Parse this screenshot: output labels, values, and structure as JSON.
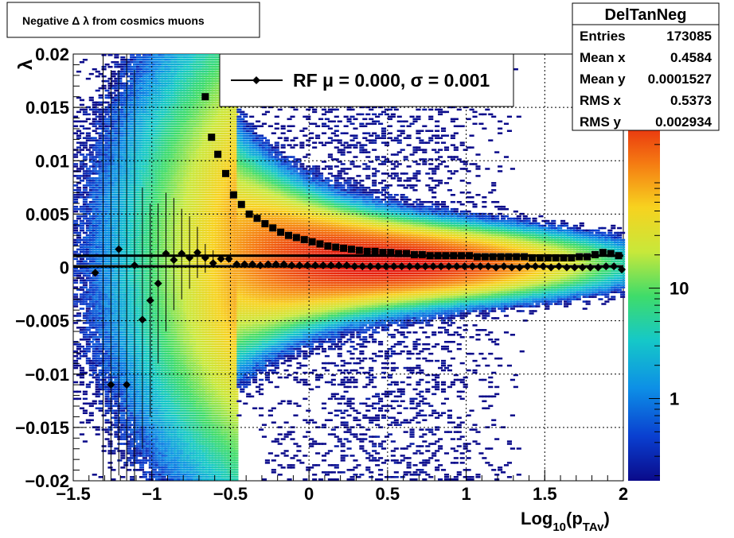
{
  "chart_data": {
    "type": "heatmap",
    "title": "Negative Δ λ from cosmics muons",
    "xlabel": {
      "main": "Log",
      "sub1": "10",
      "mid": "(p",
      "sub2": "TAv",
      "end": ")"
    },
    "ylabel": "λ",
    "xlim": [
      -1.5,
      2.0
    ],
    "ylim": [
      -0.02,
      0.02
    ],
    "grid": true,
    "x_ticks": [
      {
        "v": -1.5,
        "label": "−1.5"
      },
      {
        "v": -1.0,
        "label": "−1"
      },
      {
        "v": -0.5,
        "label": "−0.5"
      },
      {
        "v": 0.0,
        "label": "0"
      },
      {
        "v": 0.5,
        "label": "0.5"
      },
      {
        "v": 1.0,
        "label": "1"
      },
      {
        "v": 1.5,
        "label": "1.5"
      },
      {
        "v": 2.0,
        "label": "2"
      }
    ],
    "y_ticks": [
      {
        "v": 0.02,
        "label": "0.02"
      },
      {
        "v": 0.015,
        "label": "0.015"
      },
      {
        "v": 0.01,
        "label": "0.01"
      },
      {
        "v": 0.005,
        "label": "0.005"
      },
      {
        "v": 0.0,
        "label": "0"
      },
      {
        "v": -0.005,
        "label": "−0.005"
      },
      {
        "v": -0.01,
        "label": "−0.01"
      },
      {
        "v": -0.015,
        "label": "−0.015"
      },
      {
        "v": -0.02,
        "label": "−0.02"
      }
    ],
    "colorbar": {
      "scale": "log",
      "ticks": [
        {
          "v": 1,
          "label": "1"
        },
        {
          "v": 10,
          "label": "10"
        }
      ]
    },
    "legend": {
      "marker": "diamond",
      "text": "RF μ =  0.000, σ =   0.001",
      "placement": "top-center"
    },
    "stats": {
      "name": "DelTanNeg",
      "rows": [
        {
          "label": "Entries",
          "value": "173085"
        },
        {
          "label": "Mean x",
          "value": "0.4584"
        },
        {
          "label": "Mean y",
          "value": "0.0001527"
        },
        {
          "label": "RMS x",
          "value": "0.5373"
        },
        {
          "label": "RMS y",
          "value": "0.002934"
        }
      ]
    },
    "series": [
      {
        "marker": "square",
        "x": [
          -0.66,
          -0.62,
          -0.58,
          -0.53,
          -0.48,
          -0.43,
          -0.38,
          -0.33,
          -0.28,
          -0.23,
          -0.18,
          -0.13,
          -0.08,
          -0.03,
          0.02,
          0.07,
          0.12,
          0.17,
          0.22,
          0.27,
          0.32,
          0.37,
          0.42,
          0.47,
          0.52,
          0.57,
          0.62,
          0.67,
          0.72,
          0.77,
          0.82,
          0.87,
          0.92,
          0.97,
          1.02,
          1.07,
          1.12,
          1.17,
          1.22,
          1.27,
          1.32,
          1.37,
          1.42,
          1.47,
          1.52,
          1.57,
          1.62,
          1.67,
          1.72,
          1.77,
          1.82,
          1.87,
          1.92,
          1.97
        ],
        "y": [
          0.016,
          0.0122,
          0.0106,
          0.0088,
          0.0068,
          0.0059,
          0.005,
          0.0046,
          0.0041,
          0.0037,
          0.0033,
          0.003,
          0.0028,
          0.0026,
          0.0024,
          0.0022,
          0.002,
          0.0019,
          0.0018,
          0.0017,
          0.0016,
          0.0015,
          0.0015,
          0.0014,
          0.0014,
          0.0013,
          0.0013,
          0.0012,
          0.0012,
          0.0011,
          0.0011,
          0.0011,
          0.0011,
          0.0011,
          0.0011,
          0.001,
          0.001,
          0.001,
          0.001,
          0.001,
          0.001,
          0.001,
          0.0009,
          0.0009,
          0.0009,
          0.0009,
          0.0009,
          0.0009,
          0.001,
          0.001,
          0.0012,
          0.0014,
          0.0013,
          0.0011
        ]
      },
      {
        "marker": "diamond",
        "x": [
          -1.36,
          -1.26,
          -1.21,
          -1.16,
          -1.11,
          -1.06,
          -1.01,
          -0.96,
          -0.91,
          -0.86,
          -0.81,
          -0.76,
          -0.71,
          -0.66,
          -0.61,
          -0.56,
          -0.51,
          -0.46,
          -0.41,
          -0.36,
          -0.31,
          -0.26,
          -0.21,
          -0.16,
          -0.11,
          -0.06,
          -0.01,
          0.04,
          0.09,
          0.14,
          0.19,
          0.24,
          0.29,
          0.34,
          0.39,
          0.44,
          0.49,
          0.54,
          0.59,
          0.64,
          0.69,
          0.74,
          0.79,
          0.84,
          0.89,
          0.94,
          0.99,
          1.04,
          1.09,
          1.14,
          1.19,
          1.24,
          1.29,
          1.34,
          1.39,
          1.44,
          1.49,
          1.54,
          1.59,
          1.64,
          1.69,
          1.74,
          1.79,
          1.84,
          1.89,
          1.94,
          1.99
        ],
        "y": [
          -0.0005,
          -0.011,
          0.0017,
          -0.011,
          0.0002,
          -0.0049,
          -0.0031,
          -0.0015,
          0.0013,
          0.0007,
          0.0013,
          0.0009,
          0.0014,
          0.0009,
          0.0004,
          0.0008,
          0.0008,
          0.0003,
          0.0003,
          0.0003,
          0.0002,
          0.0003,
          0.0003,
          0.0003,
          0.0002,
          0.0002,
          0.0002,
          0.0002,
          0.0002,
          0.0002,
          0.0002,
          0.0002,
          0.0001,
          0.0001,
          0.0001,
          0.0001,
          0.0001,
          0.0001,
          0.0001,
          0.0001,
          0.0001,
          0.0001,
          0.0001,
          0.0001,
          0.0001,
          0.0001,
          0.0001,
          0.0001,
          0.0001,
          0.0001,
          0.0,
          0.0001,
          0.0,
          0.0,
          0.0001,
          0.0001,
          0.0001,
          0.0,
          0.0001,
          0.0,
          0.0,
          0.0,
          0.0,
          0.0,
          0.0001,
          0.0001,
          -0.0002
        ]
      }
    ],
    "error_bars": [
      {
        "x": -1.31,
        "lo": -0.02,
        "hi": 0.02
      },
      {
        "x": -1.26,
        "lo": -0.02,
        "hi": 0.0185
      },
      {
        "x": -1.21,
        "lo": -0.0195,
        "hi": 0.0185
      },
      {
        "x": -1.16,
        "lo": -0.02,
        "hi": 0.02
      },
      {
        "x": -1.11,
        "lo": -0.02,
        "hi": 0.0185
      },
      {
        "x": -1.06,
        "lo": -0.017,
        "hi": 0.0075
      },
      {
        "x": -1.01,
        "lo": -0.014,
        "hi": 0.006
      },
      {
        "x": -0.96,
        "lo": -0.009,
        "hi": 0.006
      },
      {
        "x": -0.91,
        "lo": -0.006,
        "hi": 0.007
      },
      {
        "x": -0.86,
        "lo": -0.004,
        "hi": 0.0065
      },
      {
        "x": -0.81,
        "lo": -0.003,
        "hi": 0.0055
      },
      {
        "x": -0.76,
        "lo": -0.002,
        "hi": 0.0048
      },
      {
        "x": -0.71,
        "lo": -0.001,
        "hi": 0.0038
      },
      {
        "x": -0.66,
        "lo": -0.0005,
        "hi": 0.0022
      },
      {
        "x": -0.61,
        "lo": 0.0,
        "hi": 0.0016
      }
    ],
    "fit_lines": [
      0.0011,
      0.0001
    ]
  }
}
